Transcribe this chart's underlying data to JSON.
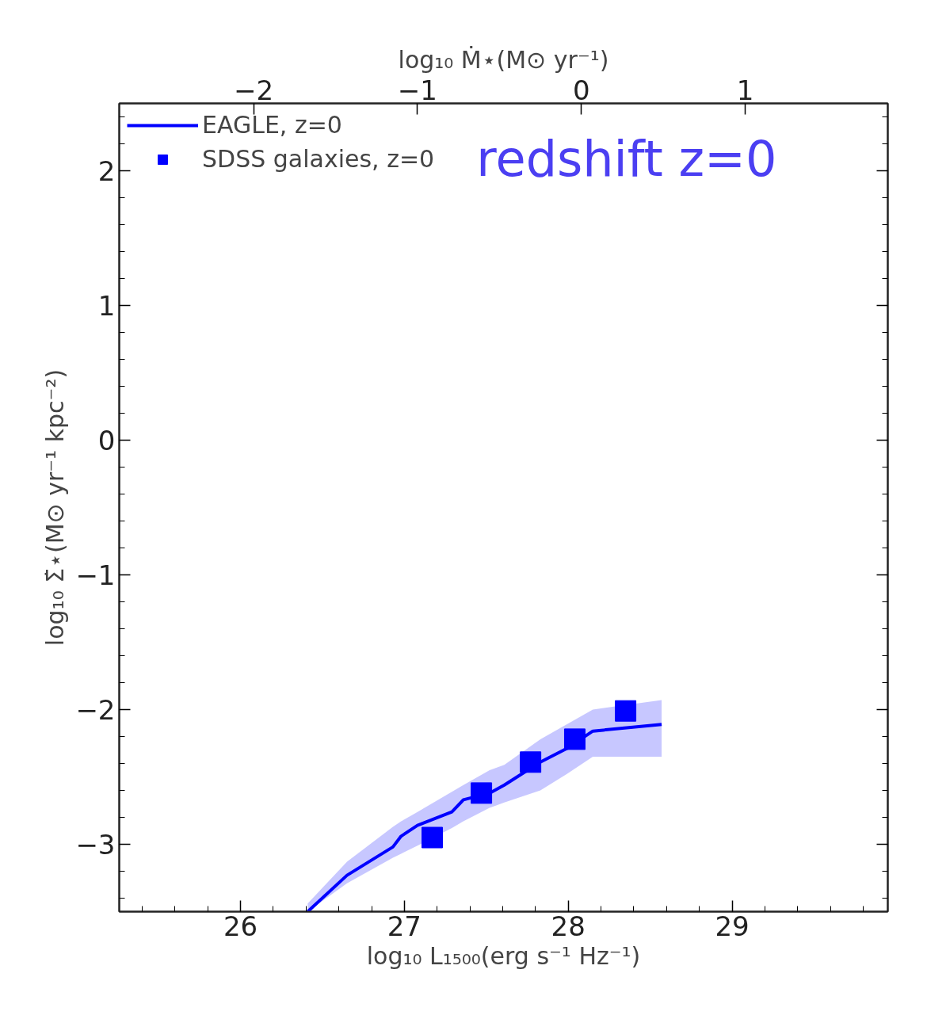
{
  "chart_data": {
    "type": "line",
    "xlabel": "log₁₀ L₁₅₀₀(erg s⁻¹ Hz⁻¹)",
    "ylabel": "log₁₀ Σ̇⋆(M⊙ yr⁻¹ kpc⁻²)",
    "x2label": "log₁₀ Ṁ⋆(M⊙ yr⁻¹)",
    "annotations": [
      "redshift z=0"
    ],
    "xlim": [
      25.26,
      29.95
    ],
    "xticks": [
      26,
      27,
      28,
      29
    ],
    "x2lim": [
      -2.82,
      1.87
    ],
    "x2ticks": [
      {
        "value": -2,
        "label": "−2"
      },
      {
        "value": -1,
        "label": "−1"
      },
      0,
      1
    ],
    "ylim": [
      -3.5,
      2.5
    ],
    "yticks": [
      {
        "value": -3,
        "label": "−3"
      },
      {
        "value": -2,
        "label": "−2"
      },
      {
        "value": -1,
        "label": "−1"
      },
      0,
      1,
      2
    ],
    "grid": false,
    "legend": "top left",
    "series": [
      {
        "name": "EAGLE, z=0",
        "color": "#0000ff",
        "line_style": "solid",
        "x": [
          26.41,
          26.65,
          26.93,
          26.98,
          27.08,
          27.29,
          27.36,
          27.52,
          27.61,
          27.83,
          27.99,
          28.15,
          28.57
        ],
        "values": [
          -3.5,
          -3.23,
          -3.02,
          -2.94,
          -2.86,
          -2.76,
          -2.67,
          -2.62,
          -2.56,
          -2.39,
          -2.29,
          -2.16,
          -2.11
        ],
        "lower": [
          -3.5,
          -3.29,
          -3.1,
          -3.07,
          -3.01,
          -2.88,
          -2.83,
          -2.73,
          -2.69,
          -2.6,
          -2.48,
          -2.35,
          -2.35
        ],
        "upper": [
          -3.44,
          -3.13,
          -2.87,
          -2.83,
          -2.76,
          -2.61,
          -2.56,
          -2.45,
          -2.41,
          -2.22,
          -2.11,
          -2.0,
          -1.93
        ]
      },
      {
        "name": "SDSS galaxies, z=0",
        "type": "scatter",
        "marker": "square",
        "color": "#0000ff",
        "x": [
          27.17,
          27.47,
          27.77,
          28.04,
          28.35
        ],
        "values": [
          -2.95,
          -2.62,
          -2.39,
          -2.22,
          -2.01
        ]
      }
    ]
  }
}
